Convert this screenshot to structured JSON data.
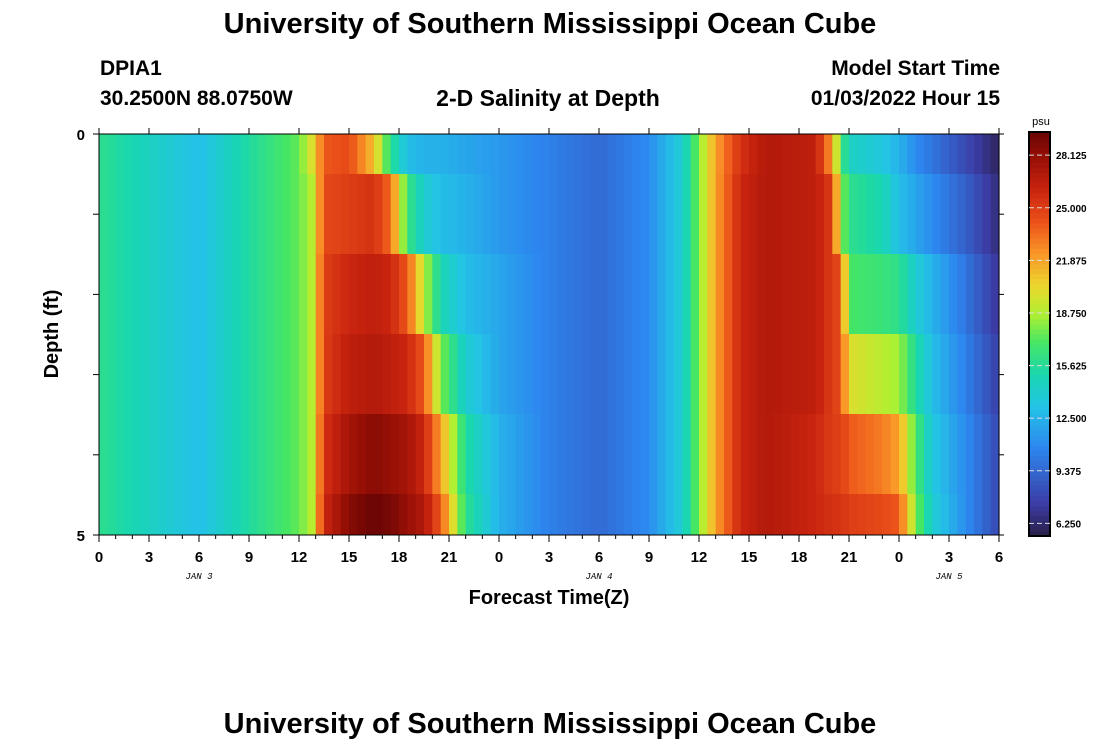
{
  "page": {
    "title": "University of Southern Mississippi Ocean Cube",
    "station_id": "DPIA1",
    "coordinates": "30.2500N  88.0750W",
    "plot_title": "2-D Salinity at Depth",
    "model_label": "Model Start Time",
    "model_time": "01/03/2022 Hour 15",
    "footer_title": "University of Southern Mississippi Ocean Cube"
  },
  "chart_data": {
    "type": "heatmap",
    "title": "2-D Salinity at Depth",
    "xlabel": "Forecast Time(Z)",
    "ylabel": "Depth (ft)",
    "ylim": [
      0,
      5
    ],
    "y_tick_labels": [
      "0",
      "5"
    ],
    "x_tick_labels": [
      "0",
      "3",
      "6",
      "9",
      "12",
      "15",
      "18",
      "21",
      "0",
      "3",
      "6",
      "9",
      "12",
      "15",
      "18",
      "21",
      "0",
      "3",
      "6"
    ],
    "date_labels": [
      {
        "label": "JAN 3",
        "hour": 6
      },
      {
        "label": "JAN 4",
        "hour": 30
      },
      {
        "label": "JAN 5",
        "hour": 51
      }
    ],
    "x_range_hours": [
      0,
      54
    ],
    "colorbar": {
      "unit": "psu",
      "min": 5.5,
      "max": 29.5,
      "ticks": [
        "28.125",
        "25.000",
        "21.875",
        "18.750",
        "15.625",
        "12.500",
        "9.375",
        "6.250"
      ],
      "tick_values": [
        28.125,
        25.0,
        21.875,
        18.75,
        15.625,
        12.5,
        9.375,
        6.25
      ]
    },
    "depth_layers": [
      "0-0.5 ft",
      "0.5-1.5 ft",
      "1.5-2.5 ft",
      "2.5-3.5 ft",
      "3.5-4.5 ft",
      "4.5-5 ft"
    ],
    "salinity_keypoints": [
      {
        "hour": 0,
        "values": [
          16.0,
          16.0,
          16.0,
          16.0,
          16.0,
          16.0
        ]
      },
      {
        "hour": 3,
        "values": [
          14.5,
          14.5,
          14.5,
          14.5,
          14.5,
          14.5
        ]
      },
      {
        "hour": 6,
        "values": [
          13.0,
          13.0,
          13.0,
          13.0,
          13.0,
          13.0
        ]
      },
      {
        "hour": 9,
        "values": [
          15.5,
          15.5,
          15.5,
          15.5,
          15.5,
          15.5
        ]
      },
      {
        "hour": 12,
        "values": [
          17.5,
          17.5,
          17.5,
          17.5,
          17.5,
          17.5
        ]
      },
      {
        "hour": 12.8,
        "values": [
          20.0,
          19.0,
          19.0,
          19.0,
          19.0,
          19.0
        ]
      },
      {
        "hour": 13.5,
        "values": [
          24.0,
          24.5,
          25.0,
          25.0,
          25.5,
          26.0
        ]
      },
      {
        "hour": 15,
        "values": [
          24.5,
          25.0,
          26.0,
          26.5,
          27.5,
          28.5
        ]
      },
      {
        "hour": 16.5,
        "values": [
          21.0,
          25.5,
          26.5,
          27.0,
          28.5,
          29.5
        ]
      },
      {
        "hour": 17.5,
        "values": [
          16.0,
          23.5,
          26.0,
          26.5,
          28.0,
          29.0
        ]
      },
      {
        "hour": 18.5,
        "values": [
          13.0,
          16.5,
          24.0,
          26.0,
          27.5,
          28.0
        ]
      },
      {
        "hour": 19.5,
        "values": [
          12.5,
          14.0,
          19.0,
          24.0,
          26.0,
          27.0
        ]
      },
      {
        "hour": 20.5,
        "values": [
          12.5,
          13.0,
          15.0,
          18.0,
          22.0,
          24.0
        ]
      },
      {
        "hour": 22,
        "values": [
          12.0,
          12.5,
          13.0,
          14.0,
          15.5,
          16.0
        ]
      },
      {
        "hour": 24,
        "values": [
          11.5,
          11.5,
          12.0,
          12.0,
          12.5,
          12.5
        ]
      },
      {
        "hour": 27,
        "values": [
          10.5,
          10.5,
          10.5,
          10.5,
          10.5,
          10.5
        ]
      },
      {
        "hour": 30,
        "values": [
          9.5,
          9.5,
          9.5,
          9.5,
          9.5,
          9.5
        ]
      },
      {
        "hour": 33,
        "values": [
          11.0,
          11.0,
          11.0,
          11.0,
          11.0,
          11.0
        ]
      },
      {
        "hour": 35,
        "values": [
          14.0,
          14.0,
          14.0,
          14.0,
          14.0,
          14.0
        ]
      },
      {
        "hour": 37,
        "values": [
          22.0,
          22.0,
          22.0,
          22.0,
          22.0,
          22.0
        ]
      },
      {
        "hour": 38.5,
        "values": [
          25.5,
          26.0,
          26.0,
          26.0,
          26.0,
          26.0
        ]
      },
      {
        "hour": 40,
        "values": [
          27.0,
          27.0,
          27.0,
          27.0,
          27.0,
          27.0
        ]
      },
      {
        "hour": 43,
        "values": [
          26.5,
          26.5,
          26.5,
          26.5,
          26.0,
          26.0
        ]
      },
      {
        "hour": 44,
        "values": [
          22.0,
          25.0,
          25.0,
          25.0,
          25.0,
          25.5
        ]
      },
      {
        "hour": 44.5,
        "values": [
          17.0,
          18.5,
          24.5,
          24.5,
          25.0,
          25.5
        ]
      },
      {
        "hour": 45,
        "values": [
          14.5,
          16.0,
          17.0,
          20.0,
          24.0,
          25.0
        ]
      },
      {
        "hour": 47,
        "values": [
          13.5,
          15.0,
          16.5,
          19.0,
          23.0,
          24.5
        ]
      },
      {
        "hour": 48,
        "values": [
          12.5,
          13.0,
          16.0,
          18.5,
          22.0,
          24.0
        ]
      },
      {
        "hour": 49,
        "values": [
          11.0,
          12.0,
          14.0,
          15.5,
          17.0,
          18.0
        ]
      },
      {
        "hour": 50,
        "values": [
          10.0,
          11.0,
          12.5,
          13.0,
          13.5,
          14.0
        ]
      },
      {
        "hour": 52,
        "values": [
          8.0,
          9.0,
          10.0,
          10.5,
          11.0,
          11.0
        ]
      },
      {
        "hour": 54,
        "values": [
          6.0,
          6.5,
          7.0,
          7.5,
          8.0,
          8.0
        ]
      }
    ]
  }
}
